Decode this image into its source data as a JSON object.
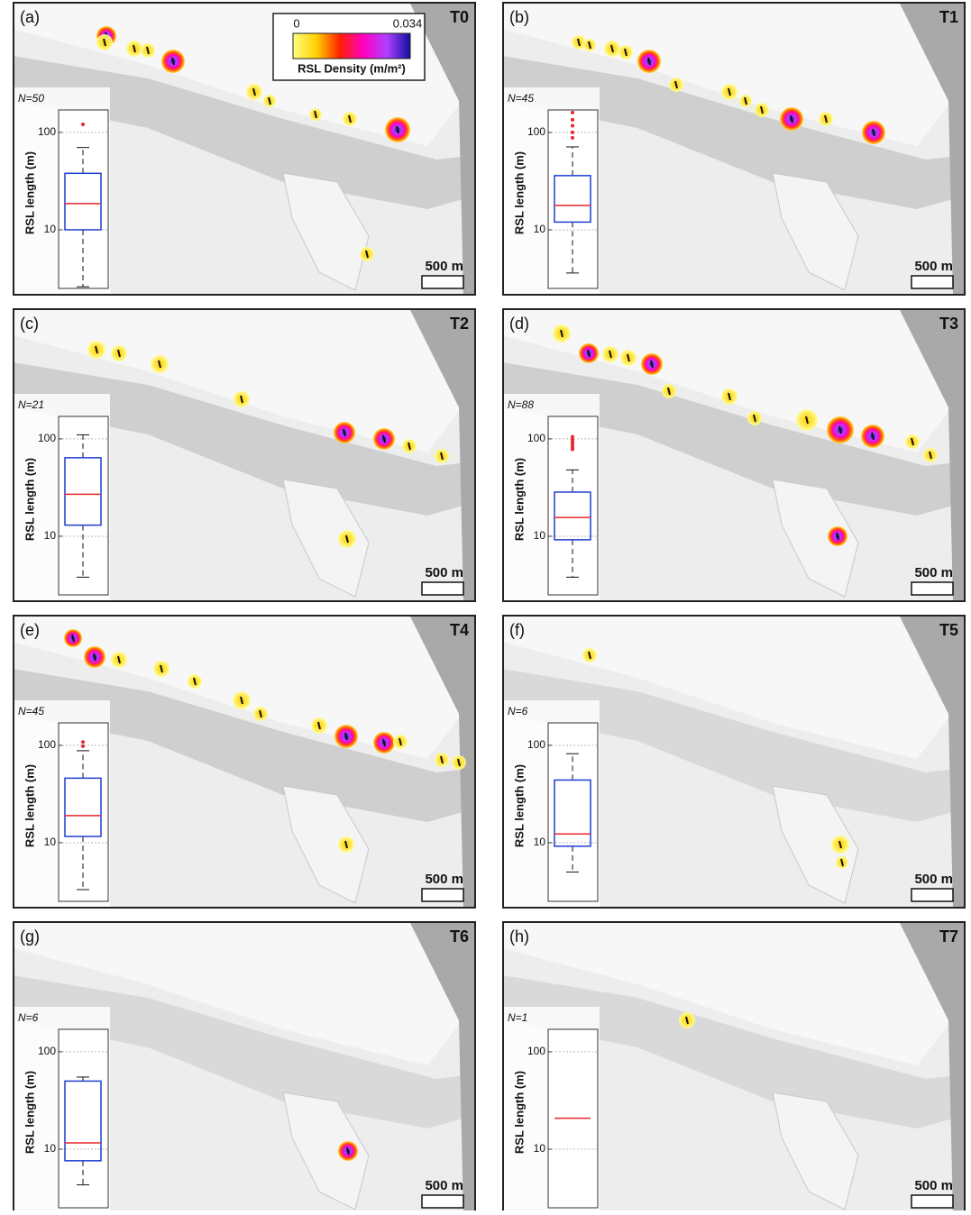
{
  "colorbar": {
    "min": 0,
    "max": 0.034,
    "label": "RSL Density (m/m²)",
    "colors": [
      "#ffff80",
      "#ffd000",
      "#ff2000",
      "#ff00c0",
      "#b040ff",
      "#1010a0"
    ]
  },
  "chart_data": [
    {
      "type": "box",
      "panel": "(a)",
      "time": "T0",
      "annotation": "N=50",
      "ylabel": "RSL length (m)",
      "scale_bar": "500 m",
      "log_scale": true,
      "ylim": [
        2.5,
        170
      ],
      "yticks": [
        10,
        100
      ],
      "grid": true,
      "box_color": "#1f3fd0",
      "median_color": "#e8262b",
      "min": 2.6,
      "q1": 10,
      "median": 18.6,
      "q3": 38,
      "max": 70,
      "outliers": [
        121
      ]
    },
    {
      "type": "box",
      "panel": "(b)",
      "time": "T1",
      "annotation": "N=45",
      "ylabel": "RSL length (m)",
      "scale_bar": "500 m",
      "log_scale": true,
      "ylim": [
        2.5,
        170
      ],
      "yticks": [
        10,
        100
      ],
      "grid": true,
      "box_color": "#1f3fd0",
      "median_color": "#e8262b",
      "min": 3.6,
      "q1": 12,
      "median": 17.8,
      "q3": 36,
      "max": 71,
      "outliers": [
        160,
        135,
        117,
        100,
        88
      ]
    },
    {
      "type": "box",
      "panel": "(c)",
      "time": "T2",
      "annotation": "N=21",
      "ylabel": "RSL length (m)",
      "scale_bar": "500 m",
      "log_scale": true,
      "ylim": [
        2.5,
        170
      ],
      "yticks": [
        10,
        100
      ],
      "grid": true,
      "box_color": "#1f3fd0",
      "median_color": "#e8262b",
      "min": 3.8,
      "q1": 13,
      "median": 27,
      "q3": 64,
      "max": 110,
      "outliers": []
    },
    {
      "type": "box",
      "panel": "(d)",
      "time": "T3",
      "annotation": "N=88",
      "ylabel": "RSL length (m)",
      "scale_bar": "500 m",
      "log_scale": true,
      "ylim": [
        2.5,
        170
      ],
      "yticks": [
        10,
        100
      ],
      "grid": true,
      "box_color": "#1f3fd0",
      "median_color": "#e8262b",
      "min": 3.8,
      "q1": 9.2,
      "median": 15.6,
      "q3": 28.4,
      "max": 48,
      "outliers": [
        105,
        98,
        92,
        87,
        82,
        78
      ]
    },
    {
      "type": "box",
      "panel": "(e)",
      "time": "T4",
      "annotation": "N=45",
      "ylabel": "RSL length (m)",
      "scale_bar": "500 m",
      "log_scale": true,
      "ylim": [
        2.5,
        170
      ],
      "yticks": [
        10,
        100
      ],
      "grid": true,
      "box_color": "#1f3fd0",
      "median_color": "#e8262b",
      "min": 3.3,
      "q1": 11.6,
      "median": 19,
      "q3": 46,
      "max": 88,
      "outliers": [
        108,
        98
      ]
    },
    {
      "type": "box",
      "panel": "(f)",
      "time": "T5",
      "annotation": "N=6",
      "ylabel": "RSL length (m)",
      "scale_bar": "500 m",
      "log_scale": true,
      "ylim": [
        2.5,
        170
      ],
      "yticks": [
        10,
        100
      ],
      "grid": true,
      "box_color": "#1f3fd0",
      "median_color": "#e8262b",
      "min": 5,
      "q1": 9.2,
      "median": 12.3,
      "q3": 44,
      "max": 82,
      "outliers": []
    },
    {
      "type": "box",
      "panel": "(g)",
      "time": "T6",
      "annotation": "N=6",
      "ylabel": "RSL length (m)",
      "scale_bar": "500 m",
      "log_scale": true,
      "ylim": [
        2.5,
        170
      ],
      "yticks": [
        10,
        100
      ],
      "grid": true,
      "box_color": "#1f3fd0",
      "median_color": "#e8262b",
      "min": 4.3,
      "q1": 7.6,
      "median": 11.6,
      "q3": 50,
      "max": 55,
      "outliers": []
    },
    {
      "type": "box",
      "panel": "(h)",
      "time": "T7",
      "annotation": "N=1",
      "ylabel": "RSL length (m)",
      "scale_bar": "500 m",
      "log_scale": true,
      "ylim": [
        2.5,
        170
      ],
      "yticks": [
        10,
        100
      ],
      "grid": true,
      "box_color": "#1f3fd0",
      "median_color": "#e8262b",
      "median": 20.8
    }
  ]
}
